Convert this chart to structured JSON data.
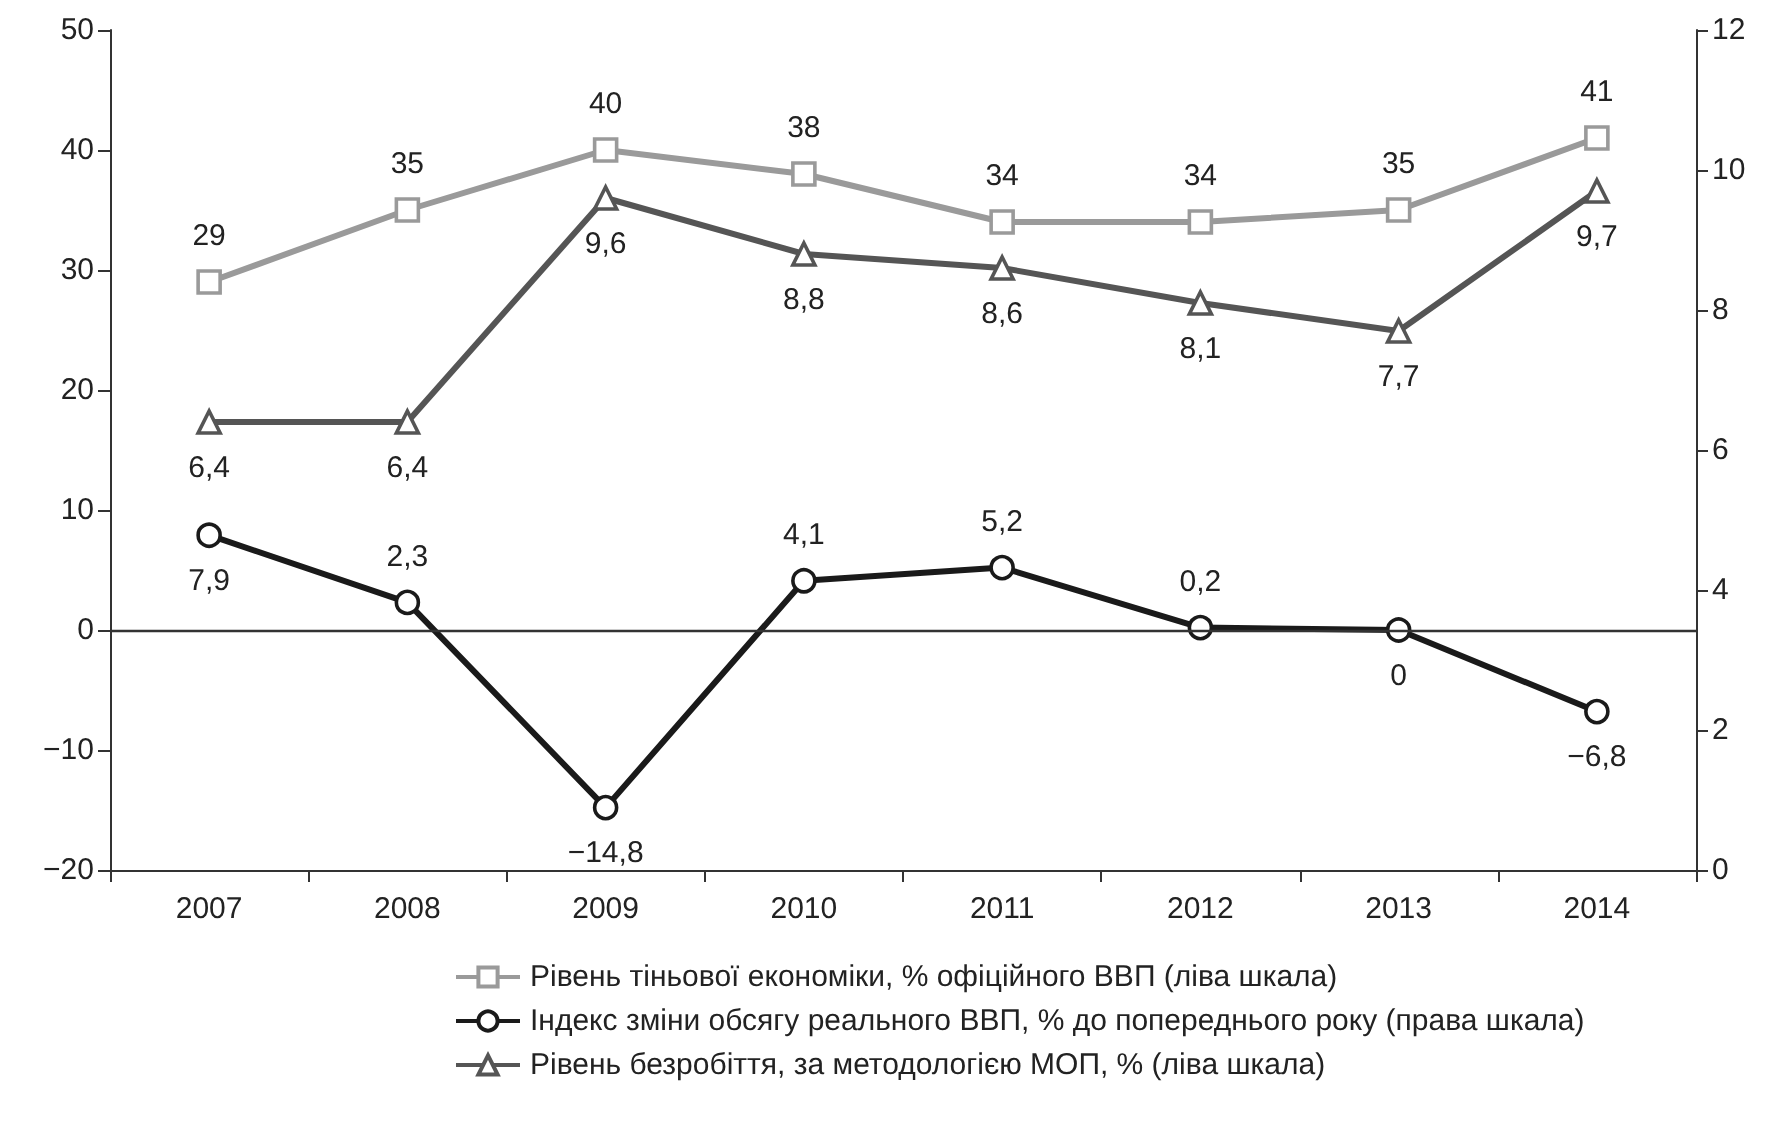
{
  "chart_data": {
    "type": "line",
    "categories": [
      "2007",
      "2008",
      "2009",
      "2010",
      "2011",
      "2012",
      "2013",
      "2014"
    ],
    "series": [
      {
        "name": "Рівень тіньової економіки, % офіційного ВВП (ліва шкала)",
        "color": "#9a9a9a",
        "marker": "square",
        "axis": "y",
        "values": [
          29,
          35,
          40,
          38,
          34,
          34,
          35,
          41
        ],
        "value_labels": [
          "29",
          "35",
          "40",
          "38",
          "34",
          "34",
          "35",
          "41"
        ]
      },
      {
        "name": "Індекс зміни обсягу реального ВВП, % до попереднього року (права шкала)",
        "color": "#1a1a1a",
        "marker": "circle",
        "axis": "y",
        "values": [
          7.9,
          2.3,
          -14.8,
          4.1,
          5.2,
          0.2,
          0,
          -6.8
        ],
        "value_labels": [
          "7,9",
          "2,3",
          "−14,8",
          "4,1",
          "5,2",
          "0,2",
          "0",
          "−6,8"
        ]
      },
      {
        "name": "Рівень безробіття, за методологією МОП, % (ліва шкала)",
        "color": "#555555",
        "marker": "triangle",
        "axis": "y2",
        "values": [
          6.4,
          6.4,
          9.6,
          8.8,
          8.6,
          8.1,
          7.7,
          9.7
        ],
        "value_labels": [
          "6,4",
          "6,4",
          "9,6",
          "8,8",
          "8,6",
          "8,1",
          "7,7",
          "9,7"
        ]
      }
    ],
    "ylim": [
      -20,
      50
    ],
    "yticks": [
      -20,
      -10,
      0,
      10,
      20,
      30,
      40,
      50
    ],
    "y2lim": [
      0,
      12
    ],
    "y2ticks": [
      0,
      2,
      4,
      6,
      8,
      10,
      12
    ],
    "ref_lines": [
      {
        "axis": "y",
        "value": 0,
        "color": "#333333"
      }
    ],
    "grid": false,
    "legend": "bottom",
    "line_style": "solid"
  }
}
